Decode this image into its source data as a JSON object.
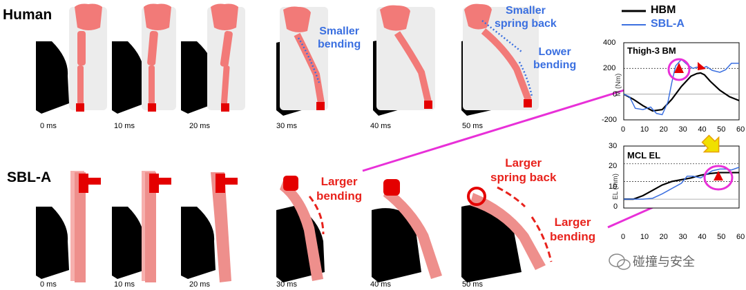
{
  "rows": {
    "human": "Human",
    "sbl": "SBL-A"
  },
  "times": [
    "0 ms",
    "10 ms",
    "20 ms",
    "30 ms",
    "40 ms",
    "50 ms"
  ],
  "annotations": {
    "smaller_bending": "Smaller\nbending",
    "smaller_spring_back": "Smaller\nspring back",
    "lower_bending": "Lower\nbending",
    "larger_bending_1": "Larger\nbending",
    "larger_spring_back": "Larger\nspring back",
    "larger_bending_2": "Larger\nbending"
  },
  "legend": {
    "hbm": "HBM",
    "sbl": "SBL-A"
  },
  "colors": {
    "hbm": "#000000",
    "sbl": "#3a6fe0",
    "red_note": "#e8221c",
    "blue_note": "#3a6fe0",
    "pointer": "#e830d8"
  },
  "chart_data": [
    {
      "type": "line",
      "title": "Thigh-3 BM",
      "xlabel": "",
      "ylabel": "M (Nm)",
      "xlim": [
        0,
        60
      ],
      "ylim": [
        -200,
        400
      ],
      "xticks": [
        "0",
        "10",
        "20",
        "30",
        "40",
        "50",
        "60"
      ],
      "yticks": [
        "400",
        "200",
        "0",
        "-200"
      ],
      "series": [
        {
          "name": "HBM",
          "x": [
            0,
            5,
            10,
            15,
            20,
            25,
            30,
            35,
            38,
            40,
            42,
            45,
            50,
            55,
            60
          ],
          "y": [
            0,
            -40,
            -90,
            -130,
            -120,
            -40,
            60,
            140,
            160,
            165,
            150,
            100,
            30,
            -20,
            -50
          ]
        },
        {
          "name": "SBL-A",
          "x": [
            0,
            3,
            6,
            10,
            14,
            17,
            20,
            23,
            25,
            27,
            30,
            33,
            36,
            38,
            40,
            43,
            46,
            50,
            53,
            56,
            60
          ],
          "y": [
            0,
            -20,
            -110,
            -120,
            -100,
            -150,
            -160,
            -60,
            90,
            220,
            270,
            230,
            200,
            210,
            195,
            215,
            185,
            170,
            190,
            240,
            240
          ]
        }
      ],
      "reference_lines": [
        200
      ]
    },
    {
      "type": "line",
      "title": "MCL EL",
      "xlabel": "",
      "ylabel": "EL (mm)",
      "xlim": [
        0,
        60
      ],
      "ylim": [
        -5,
        30
      ],
      "xticks": [
        "0",
        "10",
        "20",
        "30",
        "40",
        "50",
        "60"
      ],
      "yticks": [
        "30",
        "20",
        "10",
        "0"
      ],
      "series": [
        {
          "name": "HBM",
          "x": [
            0,
            5,
            10,
            15,
            20,
            25,
            30,
            35,
            40,
            45,
            50,
            55,
            60
          ],
          "y": [
            0,
            0,
            2,
            5,
            8,
            10,
            11,
            12,
            13.5,
            14.5,
            15,
            15,
            15
          ]
        },
        {
          "name": "SBL-A",
          "x": [
            0,
            5,
            10,
            15,
            20,
            25,
            30,
            33,
            36,
            40,
            43,
            46,
            50,
            53,
            56,
            60
          ],
          "y": [
            0,
            0,
            0,
            0.5,
            3,
            6,
            9,
            13,
            13,
            12,
            14,
            16,
            17,
            17,
            16.5,
            18
          ]
        }
      ],
      "reference_lines": [
        20,
        10
      ]
    }
  ],
  "watermark": "碰撞与安全"
}
